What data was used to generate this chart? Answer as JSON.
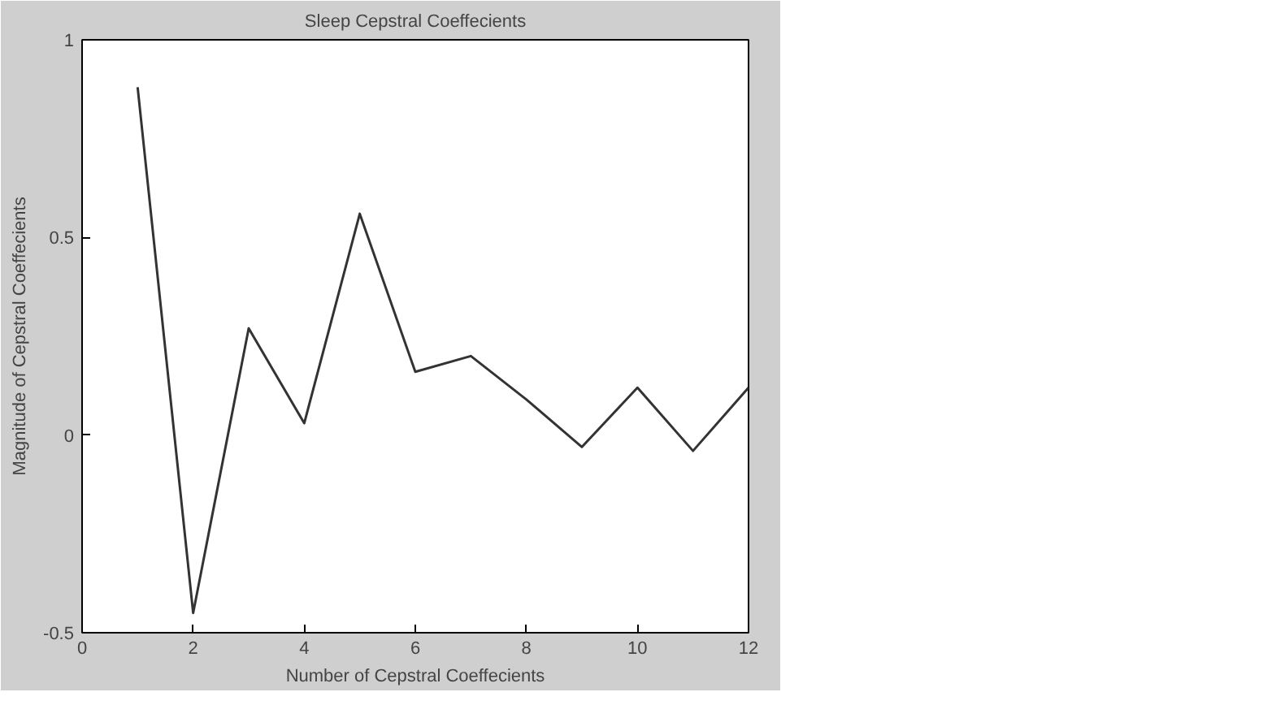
{
  "chart_data": {
    "type": "line",
    "title": "Sleep Cepstral Coeffecients",
    "xlabel": "Number of Cepstral Coeffecients",
    "ylabel": "Magnitude of Cepstral Coeffecients",
    "x": [
      1,
      2,
      3,
      4,
      5,
      6,
      7,
      8,
      9,
      10,
      11,
      12
    ],
    "series": [
      {
        "color": "#333333",
        "values": [
          0.88,
          -0.45,
          0.27,
          0.03,
          0.56,
          0.16,
          0.2,
          0.09,
          -0.03,
          0.12,
          -0.04,
          0.12
        ]
      }
    ],
    "xlim": [
      0,
      12
    ],
    "xticks": [
      0,
      2,
      4,
      6,
      8,
      10,
      12
    ],
    "ylim": [
      -0.5,
      1
    ],
    "yticks": [
      -0.5,
      0,
      0.5,
      1
    ],
    "grid": false,
    "marker": "none",
    "line_style": "solid"
  }
}
